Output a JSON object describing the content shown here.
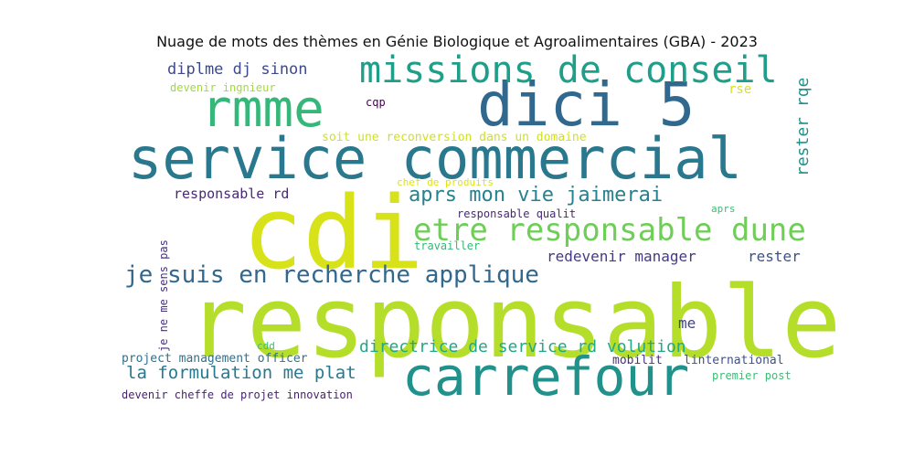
{
  "chart_data": {
    "type": "wordcloud",
    "title": "Nuage de mots des thèmes en Génie Biologique et Agroalimentaires (GBA) - 2023",
    "words": [
      {
        "text": "responsable",
        "color": "#b5de2b"
      },
      {
        "text": "cdi",
        "color": "#d8e219"
      },
      {
        "text": "service commercial",
        "color": "#2a788e"
      },
      {
        "text": "carrefour",
        "color": "#21918c"
      },
      {
        "text": "dici 5",
        "color": "#31688e"
      },
      {
        "text": "rmme",
        "color": "#35b779"
      },
      {
        "text": "missions de conseil",
        "color": "#1f9e89"
      },
      {
        "text": "etre responsable dune",
        "color": "#6ece58"
      },
      {
        "text": "je suis en recherche applique",
        "color": "#31688e"
      },
      {
        "text": "aprs mon vie jaimerai",
        "color": "#26828e"
      },
      {
        "text": "directrice de service rd volution",
        "color": "#22a884"
      },
      {
        "text": "la formulation me plat",
        "color": "#2a788e"
      },
      {
        "text": "diplme dj sinon",
        "color": "#3e4989"
      },
      {
        "text": "responsable rd",
        "color": "#482878"
      },
      {
        "text": "redevenir manager",
        "color": "#443a83"
      },
      {
        "text": "rester",
        "color": "#3b528b"
      },
      {
        "text": "rester rqe",
        "color": "#21918c"
      },
      {
        "text": "soit une reconversion dans un domaine",
        "color": "#d0e11c"
      },
      {
        "text": "devenir ingnieur",
        "color": "#a0da39"
      },
      {
        "text": "rse",
        "color": "#d8e219"
      },
      {
        "text": "cqp",
        "color": "#440154"
      },
      {
        "text": "chef de produits",
        "color": "#dde318"
      },
      {
        "text": "responsable qualit",
        "color": "#482878"
      },
      {
        "text": "aprs",
        "color": "#3dbc74"
      },
      {
        "text": "travailler",
        "color": "#35b779"
      },
      {
        "text": "je ne me sens pas",
        "color": "#46327e"
      },
      {
        "text": "me",
        "color": "#414487"
      },
      {
        "text": "cdd",
        "color": "#3dbc74"
      },
      {
        "text": "project management officer",
        "color": "#2c728e"
      },
      {
        "text": "mobilit",
        "color": "#46327e"
      },
      {
        "text": "linternational",
        "color": "#3b528b"
      },
      {
        "text": "premier post",
        "color": "#3dbc74"
      },
      {
        "text": "devenir cheffe de projet innovation",
        "color": "#481f70"
      }
    ]
  }
}
